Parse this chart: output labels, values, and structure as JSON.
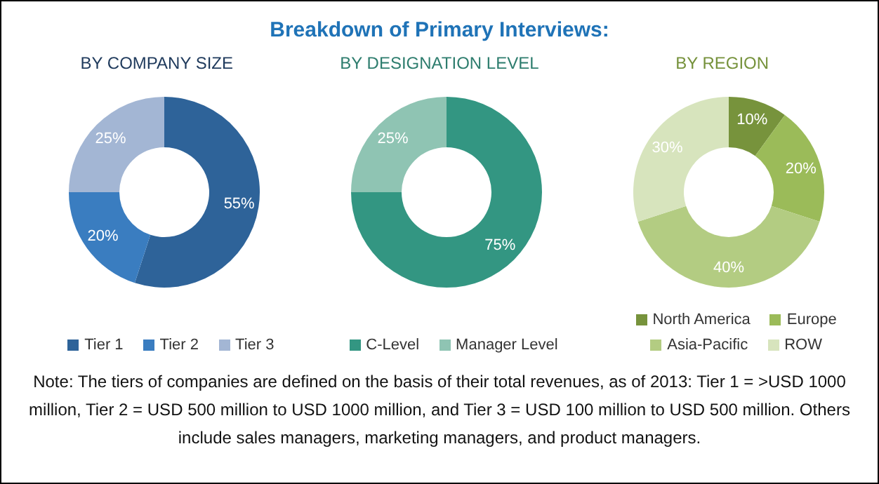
{
  "chart_data": [
    {
      "type": "other",
      "title": "Breakdown of Primary Interviews:"
    },
    {
      "type": "donut",
      "title": "BY COMPANY SIZE",
      "categories": [
        "Tier 1",
        "Tier 2",
        "Tier 3"
      ],
      "values": [
        55,
        20,
        25
      ],
      "colors": [
        "#2e6399",
        "#3a7dc0",
        "#a3b6d4"
      ],
      "value_labels": [
        "55%",
        "20%",
        "25%"
      ],
      "legend": "bottom"
    },
    {
      "type": "donut",
      "title": "BY DESIGNATION LEVEL",
      "categories": [
        "C-Level",
        "Manager Level"
      ],
      "values": [
        75,
        25
      ],
      "colors": [
        "#339682",
        "#8fc4b3"
      ],
      "value_labels": [
        "75%",
        "25%"
      ],
      "legend": "bottom"
    },
    {
      "type": "donut",
      "title": "BY REGION",
      "categories": [
        "North America",
        "Europe",
        "Asia-Pacific",
        "ROW"
      ],
      "values": [
        10,
        20,
        40,
        30
      ],
      "colors": [
        "#77933c",
        "#9bbb59",
        "#b3cc82",
        "#d7e4bd"
      ],
      "value_labels": [
        "10%",
        "20%",
        "40%",
        "30%"
      ],
      "legend": "bottom"
    },
    {
      "type": "other",
      "annotations": [
        "Note: The tiers of companies are defined on the basis of their total revenues, as of 2013: Tier 1 = >USD 1000 million, Tier 2 = USD 500 million to USD 1000 million, and Tier 3 = USD 100 million to USD 500 million. Others include sales managers, marketing managers, and product managers."
      ]
    }
  ]
}
